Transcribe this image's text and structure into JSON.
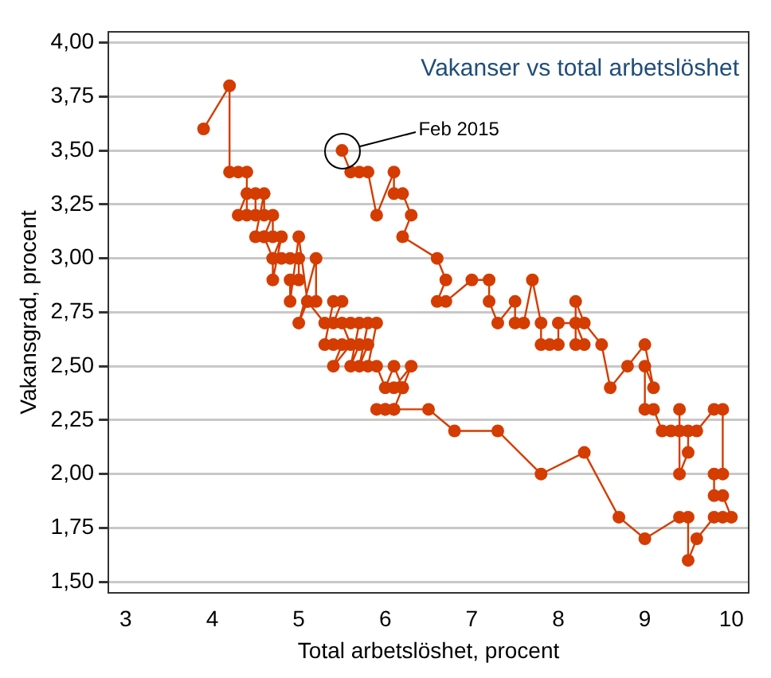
{
  "chart_data": {
    "type": "line",
    "title": "Vakanser vs total arbetslöshet",
    "xlabel": "Total arbetslöshet, procent",
    "ylabel": "Vakansgrad, procent",
    "series": [
      {
        "color": "#d43c00",
        "x": [
          3.9,
          4.2,
          4.2,
          4.3,
          4.4,
          4.4,
          4.3,
          4.4,
          4.5,
          4.5,
          4.6,
          4.6,
          4.5,
          4.6,
          4.7,
          4.7,
          4.6,
          4.7,
          4.8,
          4.7,
          4.7,
          4.8,
          4.9,
          5.0,
          5.0,
          4.9,
          4.9,
          5.0,
          5.1,
          5.2,
          5.2,
          5.0,
          5.1,
          5.3,
          5.4,
          5.5,
          5.4,
          5.3,
          5.4,
          5.5,
          5.4,
          5.6,
          5.5,
          5.6,
          5.7,
          5.6,
          5.7,
          5.8,
          5.7,
          5.8,
          5.9,
          5.8,
          5.9,
          6.0,
          6.1,
          6.2,
          6.1,
          6.3,
          6.2,
          6.1,
          6.0,
          5.9,
          6.0,
          6.1,
          6.5,
          6.8,
          7.3,
          7.8,
          8.3,
          8.7,
          9.0,
          9.4,
          9.5,
          9.5,
          9.6,
          9.8,
          9.9,
          10.0,
          9.9,
          9.8,
          9.8,
          9.9,
          9.9,
          9.8,
          9.6,
          9.5,
          9.5,
          9.4,
          9.4,
          9.4,
          9.3,
          9.2,
          9.1,
          9.0,
          9.0,
          9.1,
          9.0,
          8.8,
          8.6,
          8.5,
          8.3,
          8.2,
          8.2,
          8.3,
          8.2,
          8.0,
          8.0,
          7.9,
          7.8,
          7.8,
          7.7,
          7.6,
          7.5,
          7.5,
          7.3,
          7.2,
          7.2,
          7.0,
          6.7,
          6.6,
          6.7,
          6.6,
          6.2,
          6.3,
          6.2,
          6.1,
          6.1,
          5.9,
          5.8,
          5.7,
          5.6,
          5.5
        ],
        "values": [
          3.6,
          3.8,
          3.4,
          3.4,
          3.4,
          3.2,
          3.2,
          3.3,
          3.3,
          3.2,
          3.2,
          3.3,
          3.1,
          3.1,
          3.2,
          3.1,
          3.1,
          3.0,
          3.1,
          2.9,
          3.0,
          3.0,
          3.0,
          3.0,
          2.9,
          2.9,
          2.8,
          3.1,
          2.8,
          2.8,
          3.0,
          2.7,
          2.8,
          2.7,
          2.7,
          2.8,
          2.8,
          2.6,
          2.6,
          2.6,
          2.5,
          2.6,
          2.7,
          2.7,
          2.7,
          2.5,
          2.6,
          2.6,
          2.5,
          2.7,
          2.7,
          2.5,
          2.5,
          2.4,
          2.5,
          2.4,
          2.4,
          2.5,
          2.4,
          2.3,
          2.3,
          2.3,
          2.3,
          2.3,
          2.3,
          2.2,
          2.2,
          2.0,
          2.1,
          1.8,
          1.7,
          1.8,
          1.8,
          1.6,
          1.7,
          1.8,
          1.8,
          1.8,
          1.9,
          1.9,
          2.0,
          2.0,
          2.3,
          2.3,
          2.2,
          2.2,
          2.1,
          2.0,
          2.3,
          2.2,
          2.2,
          2.2,
          2.3,
          2.3,
          2.5,
          2.4,
          2.6,
          2.5,
          2.4,
          2.6,
          2.7,
          2.8,
          2.6,
          2.6,
          2.7,
          2.7,
          2.6,
          2.6,
          2.6,
          2.7,
          2.9,
          2.7,
          2.7,
          2.8,
          2.7,
          2.8,
          2.9,
          2.9,
          2.8,
          2.8,
          2.9,
          3.0,
          3.1,
          3.2,
          3.3,
          3.3,
          3.4,
          3.2,
          3.4,
          3.4,
          3.4,
          3.5
        ]
      }
    ],
    "annotations": [
      "Feb 2015"
    ],
    "xlim": [
      2.8,
      10.2
    ],
    "xticks": [
      3,
      4,
      5,
      6,
      7,
      8,
      9,
      10
    ],
    "ylim": [
      1.45,
      4.05
    ],
    "yticks": [
      {
        "value": 1.5,
        "label": "1,50"
      },
      {
        "value": 1.75,
        "label": "1,75"
      },
      {
        "value": 2,
        "label": "2,00"
      },
      {
        "value": 2.25,
        "label": "2,25"
      },
      {
        "value": 2.5,
        "label": "2,50"
      },
      {
        "value": 2.75,
        "label": "2,75"
      },
      {
        "value": 3,
        "label": "3,00"
      },
      {
        "value": 3.25,
        "label": "3,25"
      },
      {
        "value": 3.5,
        "label": "3,50"
      },
      {
        "value": 3.75,
        "label": "3,75"
      },
      {
        "value": 4,
        "label": "4,00"
      }
    ],
    "grid": "y",
    "marker": "circle",
    "line_style": "solid",
    "legend": false
  }
}
